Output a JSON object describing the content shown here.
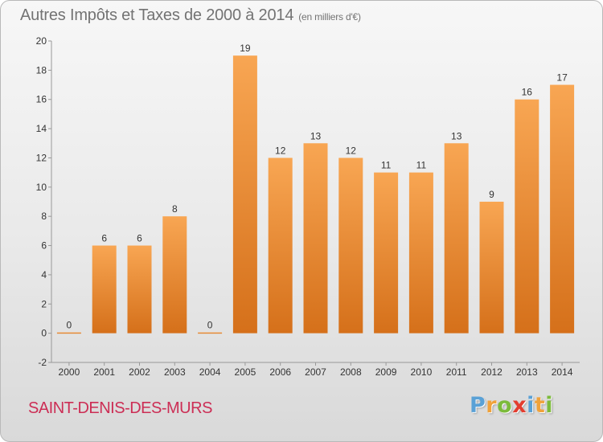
{
  "header": {
    "title": "Autres Impôts et Taxes de 2000 à 2014",
    "unit": "(en milliers d'€)"
  },
  "footer": {
    "commune": "SAINT-DENIS-DES-MURS",
    "logo_letters": [
      "P",
      "r",
      "o",
      "x",
      "i",
      "t",
      "i"
    ]
  },
  "colors": {
    "bar_top": "#f8a653",
    "bar_bottom": "#d5701a",
    "axis": "#999999",
    "tick_text": "#333333",
    "title": "#737373",
    "commune": "#cc2e55"
  },
  "chart_data": {
    "type": "bar",
    "title": "Autres Impôts et Taxes de 2000 à 2014",
    "subtitle": "(en milliers d'€)",
    "categories": [
      "2000",
      "2001",
      "2002",
      "2003",
      "2004",
      "2005",
      "2006",
      "2007",
      "2008",
      "2009",
      "2010",
      "2011",
      "2012",
      "2013",
      "2014"
    ],
    "values": [
      0,
      6,
      6,
      8,
      0,
      19,
      12,
      13,
      12,
      11,
      11,
      13,
      9,
      16,
      17
    ],
    "data_labels": [
      "0",
      "6",
      "6",
      "8",
      "0",
      "19",
      "12",
      "13",
      "12",
      "11",
      "11",
      "13",
      "9",
      "16",
      "17"
    ],
    "ylim": [
      -2,
      20
    ],
    "yticks": [
      -2,
      0,
      2,
      4,
      6,
      8,
      10,
      12,
      14,
      16,
      18,
      20
    ],
    "xlabel": "",
    "ylabel": "",
    "grid": false,
    "legend": "none"
  }
}
